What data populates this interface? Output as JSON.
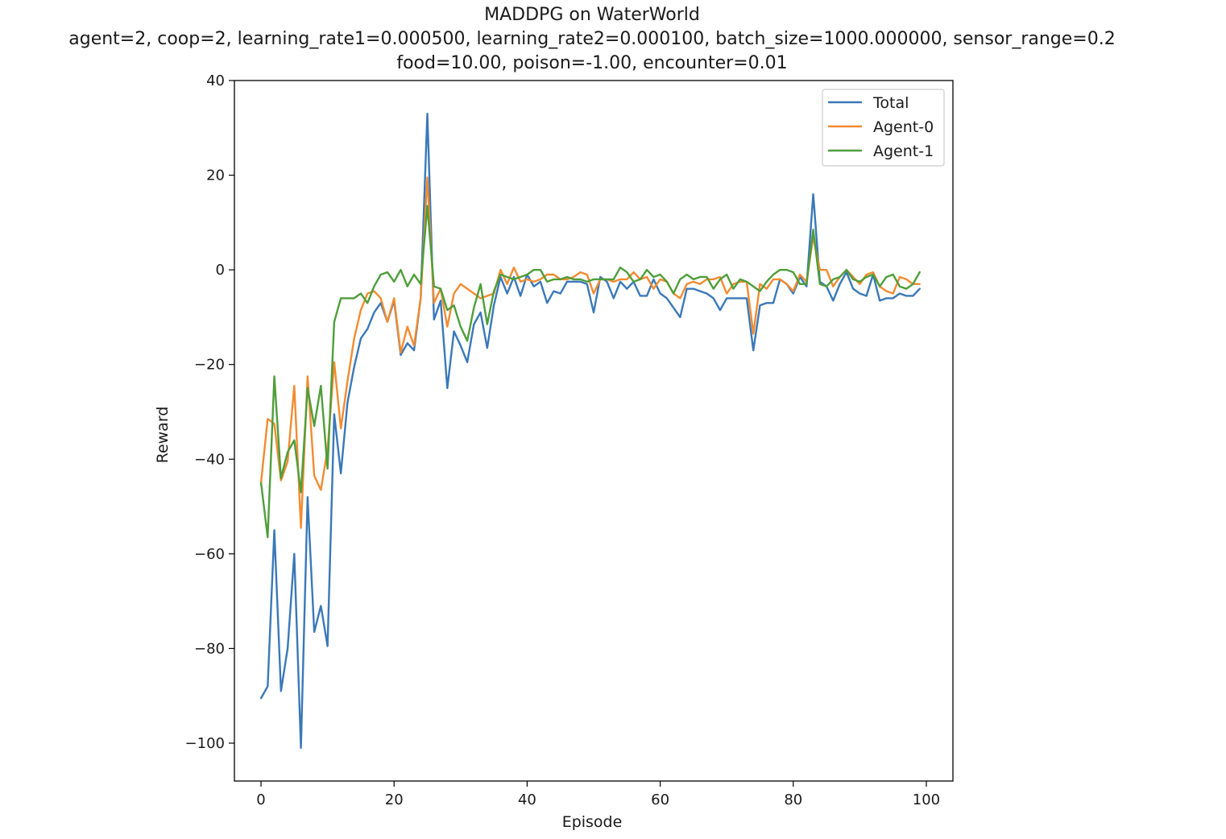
{
  "chart_data": {
    "type": "line",
    "title": "MADDPG on WaterWorld",
    "subtitle_lines": [
      "agent=2, coop=2, learning_rate1=0.000500, learning_rate2=0.000100, batch_size=1000.000000, sensor_range=0.2",
      "food=10.00, poison=-1.00, encounter=0.01"
    ],
    "xlabel": "Episode",
    "ylabel": "Reward",
    "xlim": [
      -4,
      104
    ],
    "ylim": [
      -108,
      40
    ],
    "xticks": [
      0,
      20,
      40,
      60,
      80,
      100
    ],
    "yticks": [
      40,
      20,
      0,
      -20,
      -40,
      -60,
      -80,
      -100
    ],
    "xtick_labels": [
      "0",
      "20",
      "40",
      "60",
      "80",
      "100"
    ],
    "ytick_labels": [
      "40",
      "20",
      "0",
      "−20",
      "−40",
      "−60",
      "−80",
      "−100"
    ],
    "grid": false,
    "legend": "top-right",
    "series": [
      {
        "name": "Total",
        "color": "#3a78b8",
        "values": [
          -90.5,
          -88,
          -55,
          -89,
          -80,
          -60,
          -101,
          -48,
          -76.5,
          -71,
          -79.5,
          -30.5,
          -43,
          -28,
          -20.5,
          -14.5,
          -12.5,
          -9,
          -7,
          -11,
          -6.5,
          -18,
          -15.5,
          -17,
          -6,
          33,
          -10.5,
          -6.5,
          -25,
          -13,
          -16,
          -19.5,
          -11.5,
          -9,
          -16.5,
          -7.5,
          -1.5,
          -5,
          -1.5,
          -5.5,
          -1,
          -3.5,
          -2.5,
          -7,
          -4.5,
          -5,
          -2.5,
          -2.5,
          -2.5,
          -3,
          -9,
          -1.5,
          -2.5,
          -6,
          -2.5,
          -4,
          -2.5,
          -5.5,
          -5.5,
          -2,
          -5,
          -6,
          -8,
          -10,
          -4,
          -4,
          -4.5,
          -5,
          -6,
          -8.5,
          -6,
          -6,
          -6,
          -6,
          -17,
          -7.5,
          -7,
          -7,
          -2,
          -3,
          -5,
          -1.5,
          -3.5,
          16,
          -2.5,
          -3.5,
          -6.5,
          -3,
          -0.5,
          -4,
          -5,
          -5.5,
          -1,
          -6.5,
          -6,
          -6,
          -5,
          -5.5,
          -5.5,
          -4
        ]
      },
      {
        "name": "Agent-0",
        "color": "#f28b30",
        "values": [
          -45,
          -31.5,
          -32.5,
          -44.5,
          -40.5,
          -24.5,
          -54.5,
          -22.5,
          -43.5,
          -46.5,
          -38,
          -19.5,
          -33.5,
          -23.5,
          -14.5,
          -8.5,
          -5,
          -4.5,
          -6,
          -11,
          -6,
          -17.5,
          -12,
          -16,
          -6,
          19.5,
          -7,
          -4,
          -12,
          -5,
          -3,
          -4,
          -5,
          -6,
          -5.5,
          -5,
          0,
          -3,
          0.5,
          -2.5,
          -2,
          -2.5,
          -2,
          -1,
          -1,
          -2,
          -2,
          -1.5,
          -0.5,
          -1,
          -5,
          -2,
          -2,
          -2.5,
          -2,
          -2,
          -0.5,
          -2,
          -1.5,
          -4,
          -2,
          -2.5,
          -5,
          -6,
          -3,
          -2.5,
          -3,
          -2,
          -2,
          -1.5,
          -5,
          -3,
          -2.5,
          -2.5,
          -13.5,
          -3,
          -4,
          -2,
          -2,
          -3,
          -4.5,
          -1,
          -2.5,
          7,
          0,
          0,
          -3.5,
          -1.5,
          0,
          -1.5,
          -3,
          -1,
          -0.5,
          -3.5,
          -4.5,
          -5,
          -1.5,
          -2,
          -3,
          -3
        ]
      },
      {
        "name": "Agent-1",
        "color": "#4e9e3a",
        "values": [
          -45,
          -56.5,
          -22.5,
          -44,
          -38.5,
          -36,
          -47,
          -25,
          -33,
          -24.5,
          -42,
          -11,
          -6,
          -6,
          -6,
          -5,
          -7,
          -3.5,
          -1,
          -0.5,
          -2.5,
          0,
          -3.5,
          -1,
          -3,
          13.5,
          -3.5,
          -4,
          -8.5,
          -7.5,
          -12,
          -15,
          -8,
          -3,
          -11.5,
          -4.5,
          -1,
          -1.5,
          -2,
          -1.5,
          -1,
          0,
          0,
          -2.5,
          -2,
          -2,
          -1.5,
          -2,
          -2,
          -2.5,
          -2,
          -2,
          -2,
          -2,
          0.5,
          -0.5,
          -2.5,
          -2,
          0,
          -1.5,
          -1,
          -2.5,
          -5,
          -2,
          -1,
          -2,
          -1.5,
          -1.5,
          -4,
          -2,
          -1,
          -4,
          -2,
          -2.5,
          -3.5,
          -4.5,
          -2.5,
          -1,
          0,
          0,
          -0.5,
          -3,
          -3,
          8.5,
          -3,
          -3.5,
          -2,
          -1.5,
          0,
          -2,
          -2.5,
          -1.5,
          -1,
          -3.5,
          -1.5,
          -1,
          -3.5,
          -4,
          -3,
          -0.5
        ]
      }
    ]
  }
}
